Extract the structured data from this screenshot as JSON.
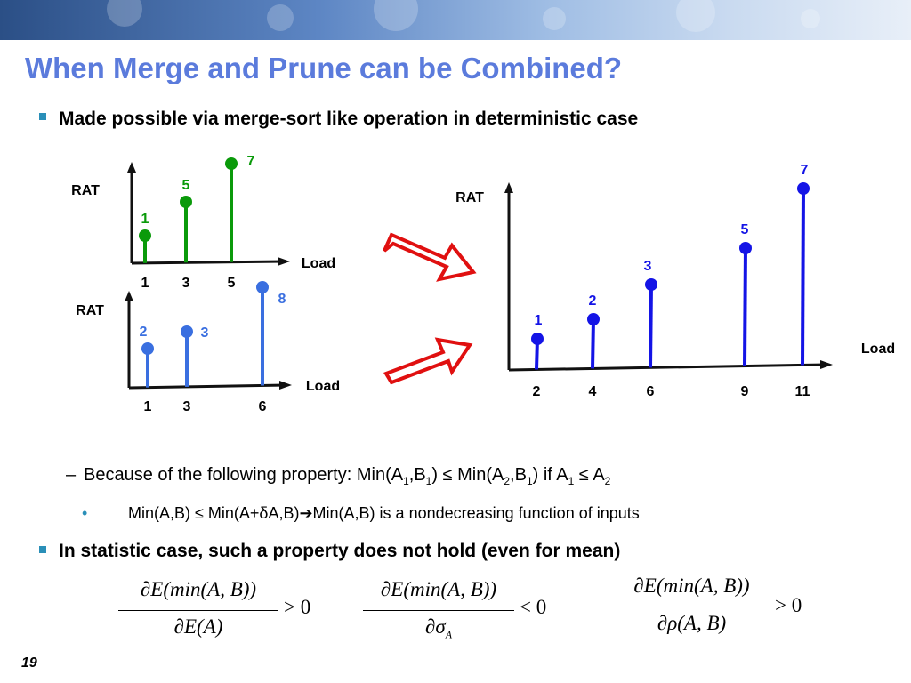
{
  "slide": {
    "title": "When Merge and Prune can be Combined?",
    "number": "19",
    "bullets": {
      "b1": "Made possible via merge-sort like operation in deterministic case",
      "sub1_prefix": "Because of the following property: Min(A",
      "sub1_parts": [
        "1",
        ",B",
        "1",
        ") ≤ Min(A",
        "2",
        ",B",
        "1",
        ") if A",
        "1",
        " ≤ A",
        "2"
      ],
      "sub2": "Min(A,B) ≤ Min(A+",
      "sub2_delta": "δ",
      "sub2_mid": "A,B)",
      "sub2_arrow": "➔",
      "sub2_end": "Min(A,B) is a nondecreasing function of inputs",
      "b2": "In statistic case, such a property does not hold (even for mean)"
    },
    "formulas": [
      {
        "num": "∂E(min(A, B))",
        "den": "∂E(A)",
        "rel": "> 0"
      },
      {
        "num": "∂E(min(A, B))",
        "den": "∂σ",
        "den_sub": "A",
        "rel": "< 0"
      },
      {
        "num": "∂E(min(A, B))",
        "den": "∂ρ(A, B)",
        "rel": "> 0"
      }
    ]
  },
  "colors": {
    "title": "#5b7bdc",
    "green": "#0a9a0a",
    "light_blue": "#3a6fe0",
    "dark_blue": "#1414e6",
    "arrow": "#e01010",
    "bullet": "#2a8fb8"
  },
  "chart_data": [
    {
      "type": "stem",
      "ylabel": "RAT",
      "xlabel": "Load",
      "x_ticks": [
        "1",
        "3",
        "5"
      ],
      "points": [
        {
          "x": 1,
          "rat": 1,
          "label": "1"
        },
        {
          "x": 3,
          "rat": 5,
          "label": "5"
        },
        {
          "x": 5,
          "rat": 7,
          "label": "7"
        }
      ],
      "color": "green"
    },
    {
      "type": "stem",
      "ylabel": "RAT",
      "xlabel": "Load",
      "x_ticks": [
        "1",
        "3",
        "6"
      ],
      "points": [
        {
          "x": 1,
          "rat": 2,
          "label": "2"
        },
        {
          "x": 3,
          "rat": 3,
          "label": "3"
        },
        {
          "x": 6,
          "rat": 8,
          "label": "8"
        }
      ],
      "color": "light_blue"
    },
    {
      "type": "stem",
      "ylabel": "RAT",
      "xlabel": "Load",
      "x_ticks": [
        "2",
        "4",
        "6",
        "9",
        "11"
      ],
      "points": [
        {
          "x": 2,
          "rat": 1,
          "label": "1"
        },
        {
          "x": 4,
          "rat": 2,
          "label": "2"
        },
        {
          "x": 6,
          "rat": 3,
          "label": "3"
        },
        {
          "x": 9,
          "rat": 5,
          "label": "5"
        },
        {
          "x": 11,
          "rat": 7,
          "label": "7"
        }
      ],
      "color": "dark_blue"
    }
  ]
}
